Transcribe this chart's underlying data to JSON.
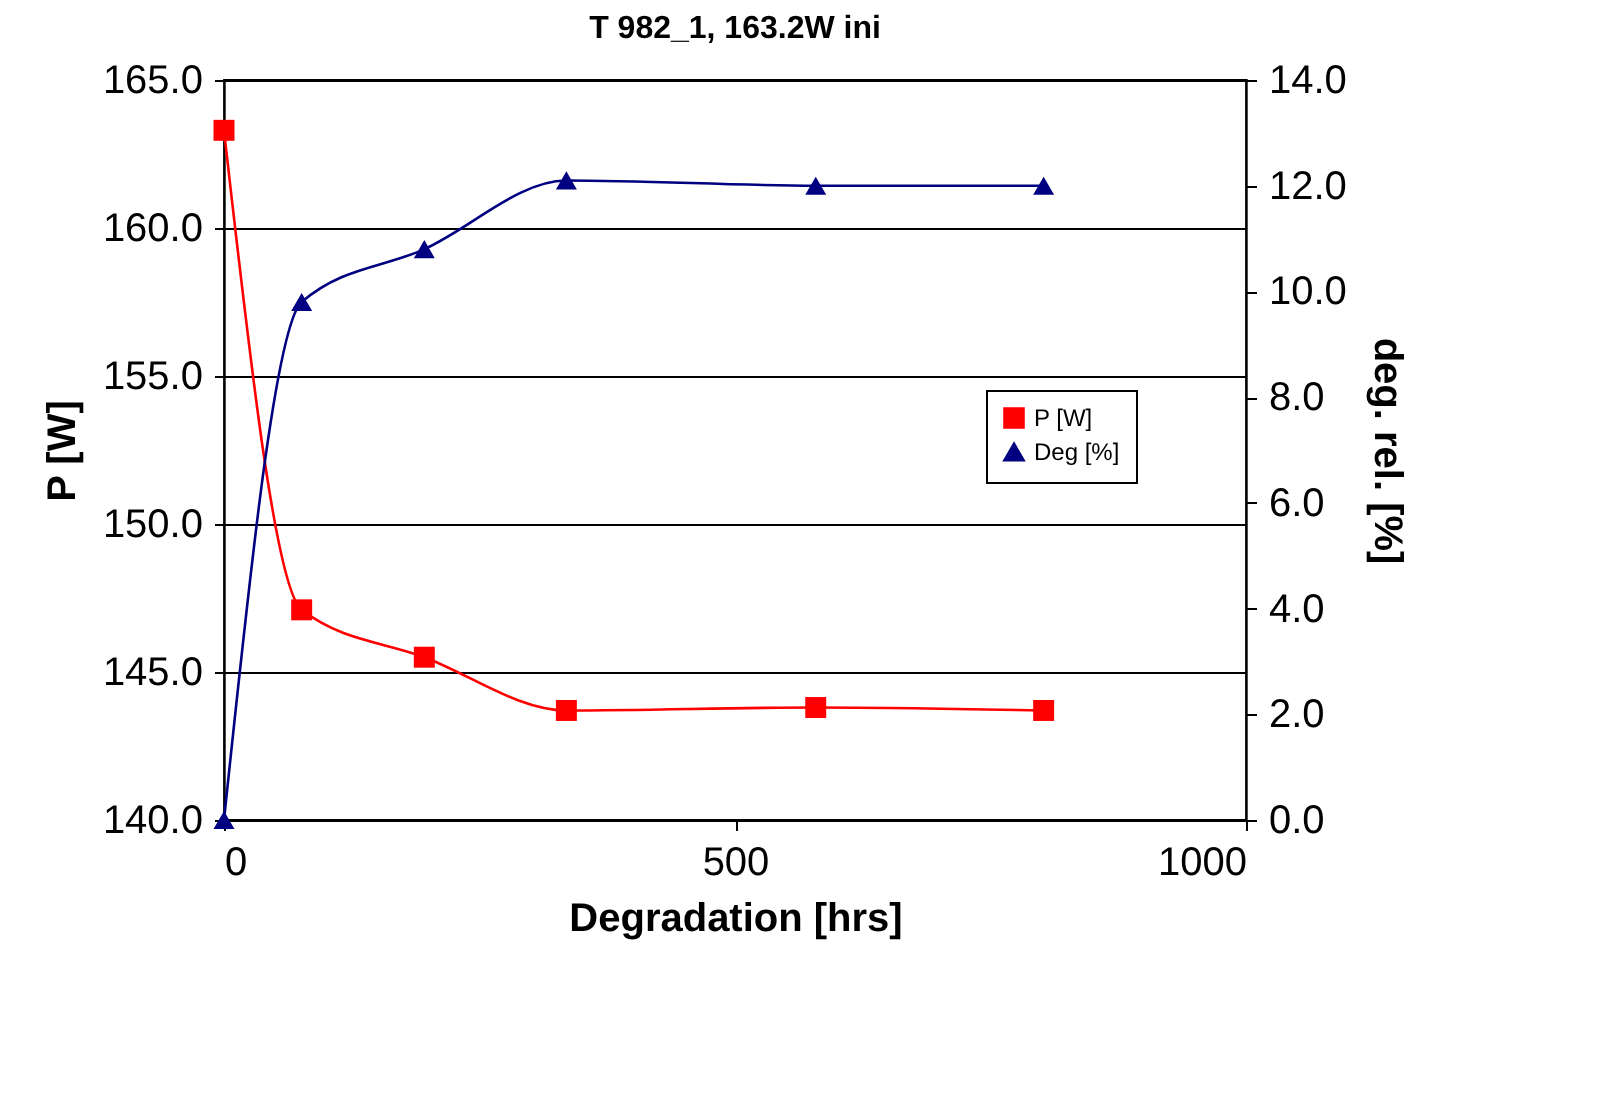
{
  "chart_data": {
    "type": "line",
    "title": "T 982_1, 163.2W  ini",
    "xlabel": "Degradation [hrs]",
    "ylabel": "P [W]",
    "y2label": "deg. rel. [%]",
    "x": [
      0,
      76,
      196,
      335,
      579,
      802
    ],
    "series": [
      {
        "name": "P [W]",
        "color": "#ff0000",
        "marker": "square",
        "values": [
          163.3,
          147.1,
          145.5,
          143.7,
          143.8,
          143.7
        ]
      },
      {
        "name": "Deg [%]",
        "color": "#000080",
        "marker": "triangle",
        "axis": "y2",
        "values": [
          0,
          9.8,
          10.8,
          12.1,
          12.0,
          12.0
        ]
      }
    ],
    "xlim": [
      0,
      1000
    ],
    "xticks": [
      0,
      500,
      1000
    ],
    "ylim": [
      140,
      165
    ],
    "yticks": [
      {
        "value": 140,
        "label": "140.0"
      },
      {
        "value": 145,
        "label": "145.0"
      },
      {
        "value": 150,
        "label": "150.0"
      },
      {
        "value": 155,
        "label": "155.0"
      },
      {
        "value": 160,
        "label": "160.0"
      },
      {
        "value": 165,
        "label": "165.0"
      }
    ],
    "y2lim": [
      0,
      14
    ],
    "y2ticks": [
      {
        "value": 0,
        "label": "0.0"
      },
      {
        "value": 2,
        "label": "2.0"
      },
      {
        "value": 4,
        "label": "4.0"
      },
      {
        "value": 6,
        "label": "6.0"
      },
      {
        "value": 8,
        "label": "8.0"
      },
      {
        "value": 10,
        "label": "10.0"
      },
      {
        "value": 12,
        "label": "12.0"
      },
      {
        "value": 14,
        "label": "14.0"
      }
    ],
    "grid": "y",
    "legend": "right",
    "line_style": "solid"
  }
}
